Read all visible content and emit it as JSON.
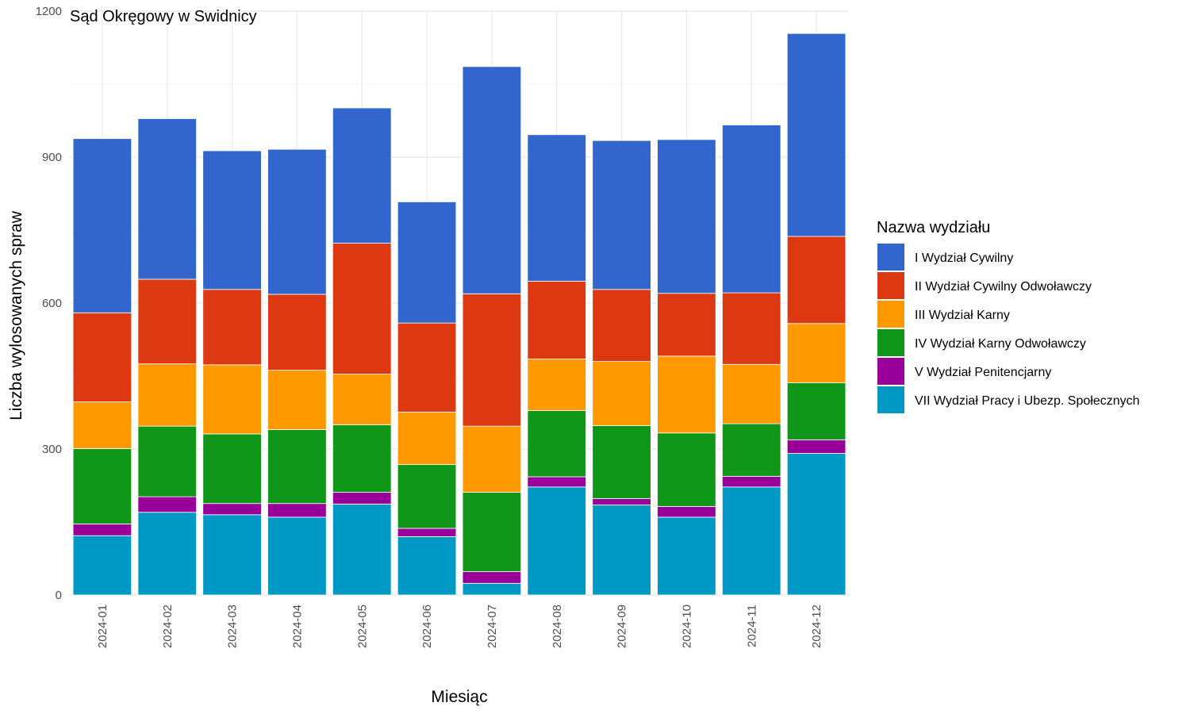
{
  "chart_data": {
    "type": "bar",
    "stacked": true,
    "title": "Sąd Okręgowy w Swidnicy",
    "xlabel": "Miesiąc",
    "ylabel": "Liczba wylosowanych spraw",
    "ylim": [
      0,
      1200
    ],
    "yticks": [
      0,
      300,
      600,
      900,
      1200
    ],
    "y_tick_labels": [
      "0",
      "300",
      "600",
      "900",
      "1200"
    ],
    "grid": true,
    "legend_title": "Nazwa wydziału",
    "legend_position": "right",
    "categories": [
      "2024-01",
      "2024-02",
      "2024-03",
      "2024-04",
      "2024-05",
      "2024-06",
      "2024-07",
      "2024-08",
      "2024-09",
      "2024-10",
      "2024-11",
      "2024-12"
    ],
    "series": [
      {
        "name": "I Wydział Cywilny",
        "color": "#3366cc",
        "values": [
          358,
          330,
          285,
          298,
          278,
          249,
          467,
          301,
          306,
          316,
          345,
          417
        ]
      },
      {
        "name": "II Wydział Cywilny Odwoławczy",
        "color": "#dc3912",
        "values": [
          183,
          174,
          155,
          156,
          269,
          183,
          272,
          160,
          148,
          129,
          147,
          179
        ]
      },
      {
        "name": "III Wydział Karny",
        "color": "#ff9900",
        "values": [
          96,
          128,
          142,
          122,
          104,
          108,
          136,
          106,
          132,
          158,
          122,
          122
        ]
      },
      {
        "name": "IV Wydział Karny Odwoławczy",
        "color": "#109618",
        "values": [
          155,
          145,
          143,
          152,
          139,
          131,
          163,
          136,
          150,
          151,
          108,
          117
        ]
      },
      {
        "name": "V Wydział Penitencjarny",
        "color": "#990099",
        "values": [
          24,
          32,
          23,
          28,
          24,
          17,
          24,
          21,
          13,
          22,
          22,
          28
        ]
      },
      {
        "name": "VII Wydział Pracy i Ubezp. Społecznych",
        "color": "#0099c6",
        "values": [
          122,
          170,
          165,
          160,
          187,
          120,
          24,
          222,
          185,
          160,
          222,
          291
        ]
      }
    ]
  }
}
